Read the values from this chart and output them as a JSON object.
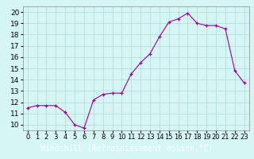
{
  "x": [
    0,
    1,
    2,
    3,
    4,
    5,
    6,
    7,
    8,
    9,
    10,
    11,
    12,
    13,
    14,
    15,
    16,
    17,
    18,
    19,
    20,
    21,
    22,
    23
  ],
  "y": [
    11.5,
    11.7,
    11.7,
    11.7,
    11.1,
    10.0,
    9.7,
    12.2,
    12.7,
    12.8,
    12.8,
    14.5,
    15.5,
    16.3,
    17.8,
    19.1,
    19.4,
    19.9,
    19.0,
    18.8,
    18.8,
    18.5,
    14.8,
    13.7
  ],
  "line_color": "#990099",
  "bg_color": "#d6f5f5",
  "grid_color": "#b0d8d8",
  "xlabel": "Windchill (Refroidissement éolien,°C)",
  "xlabel_bg": "#7b3f7b",
  "xlabel_color": "#ffffff",
  "ylabel_ticks": [
    10,
    11,
    12,
    13,
    14,
    15,
    16,
    17,
    18,
    19,
    20
  ],
  "xtick_labels": [
    "0",
    "1",
    "2",
    "3",
    "4",
    "5",
    "6",
    "7",
    "8",
    "9",
    "10",
    "11",
    "12",
    "13",
    "14",
    "15",
    "16",
    "17",
    "18",
    "19",
    "20",
    "21",
    "22",
    "23"
  ],
  "ylim": [
    9.5,
    20.5
  ],
  "xlim": [
    -0.5,
    23.5
  ],
  "tick_fontsize": 6.5,
  "xlabel_fontsize": 7.0
}
